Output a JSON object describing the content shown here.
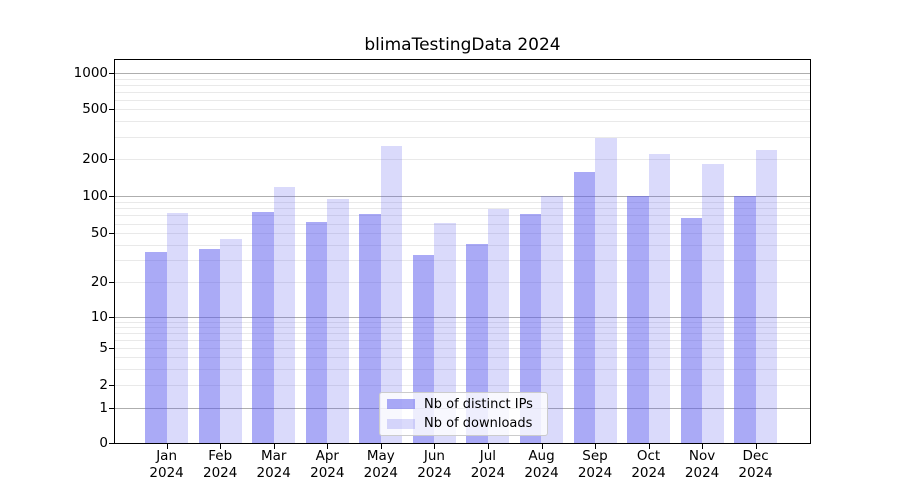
{
  "title": "blimaTestingData 2024",
  "chart_data": {
    "type": "bar",
    "title": "blimaTestingData 2024",
    "categories": [
      "Jan 2024",
      "Feb 2024",
      "Mar 2024",
      "Apr 2024",
      "May 2024",
      "Jun 2024",
      "Jul 2024",
      "Aug 2024",
      "Sep 2024",
      "Oct 2024",
      "Nov 2024",
      "Dec 2024"
    ],
    "series": [
      {
        "name": "Nb of distinct IPs",
        "color": "#5555ee",
        "alpha": 0.5,
        "values": [
          35,
          37,
          74,
          62,
          72,
          33,
          41,
          71,
          155,
          101,
          66,
          101
        ]
      },
      {
        "name": "Nb of downloads",
        "color": "#5555ee",
        "alpha": 0.22,
        "values": [
          73,
          45,
          119,
          94,
          253,
          61,
          78,
          100,
          292,
          220,
          180,
          235
        ]
      }
    ],
    "xlabel": "",
    "ylabel": "",
    "yscale": "symlog",
    "yticks": [
      0,
      1,
      2,
      5,
      10,
      20,
      50,
      100,
      200,
      500,
      1000
    ],
    "ylim": [
      0,
      1150
    ],
    "grid": true,
    "legend_position": "lower center"
  },
  "colors": {
    "bar_ips_rendered": "#aaaaf0",
    "bar_downloads_rendered": "#d9d9f8",
    "grid_major": "#aeaeae",
    "grid_minor": "#e9e9e9",
    "axis": "#000000",
    "background": "#ffffff"
  }
}
